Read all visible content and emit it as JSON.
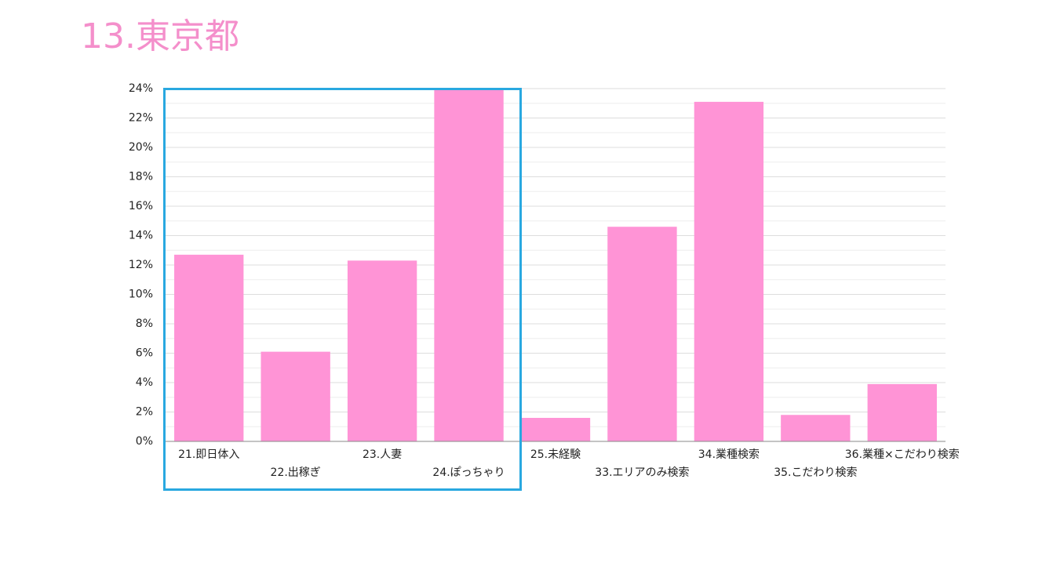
{
  "chart_data": {
    "type": "bar",
    "title": "13.東京都",
    "categories": [
      "21.即日体入",
      "22.出稼ぎ",
      "23.人妻",
      "24.ぽっちゃり",
      "25.未経験",
      "33.エリアのみ検索",
      "34.業種検索",
      "35.こだわり検索",
      "36.業種×こだわり検索"
    ],
    "values": [
      12.7,
      6.1,
      12.3,
      23.9,
      1.6,
      14.6,
      23.1,
      1.8,
      3.9
    ],
    "color": "#ff94d6",
    "ylim": [
      0,
      24
    ],
    "yticks": [
      {
        "value": 0,
        "label": "0%"
      },
      {
        "value": 2,
        "label": "2%"
      },
      {
        "value": 4,
        "label": "4%"
      },
      {
        "value": 6,
        "label": "6%"
      },
      {
        "value": 8,
        "label": "8%"
      },
      {
        "value": 10,
        "label": "10%"
      },
      {
        "value": 12,
        "label": "12%"
      },
      {
        "value": 14,
        "label": "14%"
      },
      {
        "value": 16,
        "label": "16%"
      },
      {
        "value": 18,
        "label": "18%"
      },
      {
        "value": 20,
        "label": "20%"
      },
      {
        "value": 22,
        "label": "22%"
      },
      {
        "value": 24,
        "label": "24%"
      }
    ],
    "yminor_ticks": [
      1,
      3,
      5,
      7,
      9,
      11,
      13,
      15,
      17,
      19,
      21,
      23
    ],
    "grid": true
  }
}
